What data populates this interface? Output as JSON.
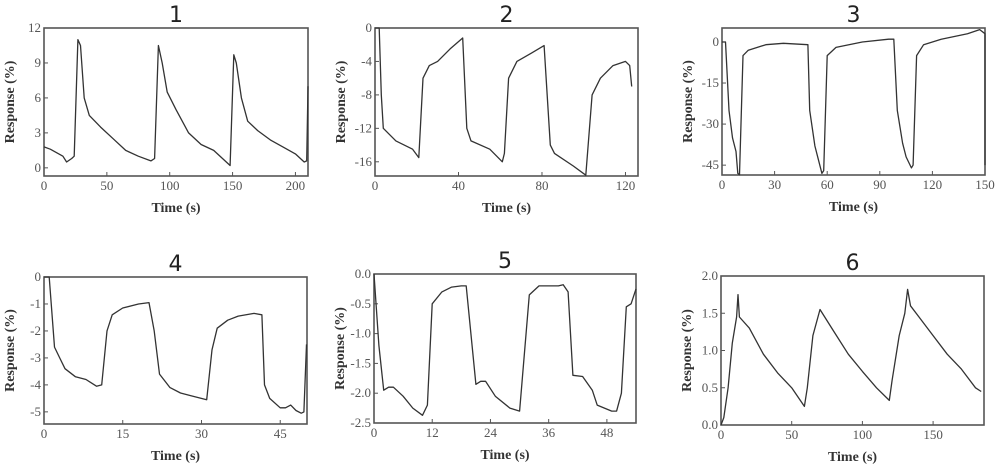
{
  "chart_data": [
    {
      "type": "line",
      "title": "1",
      "xlabel": "Time (s)",
      "ylabel": "Response (%)",
      "xlim": [
        0,
        210
      ],
      "ylim": [
        -0.7,
        12
      ],
      "xticks": [
        0,
        50,
        100,
        150,
        200
      ],
      "xtick_labels": [
        "0",
        "50",
        "100",
        "150",
        "200"
      ],
      "yticks": [
        0,
        3,
        6,
        9,
        12
      ],
      "ytick_labels": [
        "0",
        "3",
        "6",
        "9",
        "12"
      ],
      "series": [
        {
          "name": "response",
          "points": [
            [
              0,
              1.8
            ],
            [
              5,
              1.6
            ],
            [
              10,
              1.3
            ],
            [
              15,
              1
            ],
            [
              18,
              0.5
            ],
            [
              22,
              0.8
            ],
            [
              24,
              1
            ],
            [
              27,
              11
            ],
            [
              29,
              10.5
            ],
            [
              32,
              6
            ],
            [
              36,
              4.5
            ],
            [
              45,
              3.5
            ],
            [
              55,
              2.5
            ],
            [
              65,
              1.5
            ],
            [
              75,
              1
            ],
            [
              85,
              0.6
            ],
            [
              88,
              0.8
            ],
            [
              91,
              10.5
            ],
            [
              94,
              9
            ],
            [
              98,
              6.5
            ],
            [
              105,
              5
            ],
            [
              115,
              3
            ],
            [
              125,
              2
            ],
            [
              135,
              1.5
            ],
            [
              145,
              0.5
            ],
            [
              148,
              0.2
            ],
            [
              151,
              9.7
            ],
            [
              153,
              9
            ],
            [
              157,
              6
            ],
            [
              162,
              4
            ],
            [
              170,
              3.2
            ],
            [
              180,
              2.4
            ],
            [
              190,
              1.8
            ],
            [
              200,
              1.2
            ],
            [
              207,
              0.5
            ],
            [
              209,
              0.6
            ],
            [
              210,
              7
            ]
          ]
        }
      ]
    },
    {
      "type": "line",
      "title": "2",
      "xlabel": "Time (s)",
      "ylabel": "Response (%)",
      "xlim": [
        0,
        126
      ],
      "ylim": [
        -17.7,
        0
      ],
      "xticks": [
        0,
        40,
        80,
        120
      ],
      "xtick_labels": [
        "0",
        "40",
        "80",
        "120"
      ],
      "yticks": [
        0,
        -4,
        -8,
        -12,
        -16
      ],
      "ytick_labels": [
        "0",
        "-4",
        "-8",
        "-12",
        "-16"
      ],
      "series": [
        {
          "name": "response",
          "points": [
            [
              0,
              0
            ],
            [
              2,
              0
            ],
            [
              3,
              -8
            ],
            [
              4,
              -12
            ],
            [
              10,
              -13.5
            ],
            [
              18,
              -14.5
            ],
            [
              21,
              -15.5
            ],
            [
              23,
              -6
            ],
            [
              26,
              -4.5
            ],
            [
              30,
              -4
            ],
            [
              36,
              -2.5
            ],
            [
              42,
              -1.2
            ],
            [
              44,
              -12
            ],
            [
              46,
              -13.5
            ],
            [
              55,
              -14.5
            ],
            [
              61,
              -16
            ],
            [
              62,
              -15
            ],
            [
              64,
              -6
            ],
            [
              68,
              -4
            ],
            [
              75,
              -3
            ],
            [
              81,
              -2.1
            ],
            [
              84,
              -14
            ],
            [
              86,
              -15
            ],
            [
              95,
              -16.5
            ],
            [
              101,
              -17.6
            ],
            [
              104,
              -8
            ],
            [
              108,
              -6
            ],
            [
              114,
              -4.5
            ],
            [
              120,
              -4
            ],
            [
              122,
              -4.5
            ],
            [
              123,
              -7
            ]
          ]
        }
      ]
    },
    {
      "type": "line",
      "title": "3",
      "xlabel": "Time (s)",
      "ylabel": "Response (%)",
      "xlim": [
        0,
        150
      ],
      "ylim": [
        -48.6,
        5.1
      ],
      "xticks": [
        0,
        30,
        60,
        90,
        120,
        150
      ],
      "xtick_labels": [
        "0",
        "30",
        "60",
        "90",
        "120",
        "150"
      ],
      "yticks": [
        0,
        -15,
        -30,
        -45
      ],
      "ytick_labels": [
        "0",
        "-15",
        "-30",
        "-45"
      ],
      "series": [
        {
          "name": "response",
          "points": [
            [
              0,
              0
            ],
            [
              2,
              0
            ],
            [
              4,
              -25
            ],
            [
              6,
              -35
            ],
            [
              8,
              -40
            ],
            [
              9,
              -48
            ],
            [
              10,
              -48.5
            ],
            [
              12,
              -5
            ],
            [
              15,
              -3
            ],
            [
              25,
              -1
            ],
            [
              35,
              -0.5
            ],
            [
              49,
              -1
            ],
            [
              50,
              -25
            ],
            [
              53,
              -38
            ],
            [
              55,
              -43
            ],
            [
              57,
              -48
            ],
            [
              58,
              -47
            ],
            [
              60,
              -5
            ],
            [
              65,
              -2
            ],
            [
              80,
              0
            ],
            [
              95,
              1
            ],
            [
              98,
              1
            ],
            [
              100,
              -25
            ],
            [
              103,
              -37
            ],
            [
              105,
              -42
            ],
            [
              108,
              -46
            ],
            [
              109,
              -45
            ],
            [
              111,
              -5
            ],
            [
              115,
              -1
            ],
            [
              125,
              1
            ],
            [
              140,
              3
            ],
            [
              147,
              4.5
            ],
            [
              150,
              3
            ],
            [
              150,
              -45
            ]
          ]
        }
      ]
    },
    {
      "type": "line",
      "title": "4",
      "xlabel": "Time (s)",
      "ylabel": "Response (%)",
      "xlim": [
        0,
        50.1
      ],
      "ylim": [
        -5.45,
        0
      ],
      "xticks": [
        0,
        15,
        30,
        45
      ],
      "xtick_labels": [
        "0",
        "15",
        "30",
        "45"
      ],
      "yticks": [
        0,
        -1,
        -2,
        -3,
        -4,
        -5
      ],
      "ytick_labels": [
        "0",
        "-1",
        "-2",
        "-3",
        "-4",
        "-5"
      ],
      "series": [
        {
          "name": "response",
          "points": [
            [
              0,
              0
            ],
            [
              1,
              0
            ],
            [
              2,
              -2.6
            ],
            [
              3,
              -3
            ],
            [
              4,
              -3.4
            ],
            [
              6,
              -3.7
            ],
            [
              8,
              -3.8
            ],
            [
              10,
              -4.05
            ],
            [
              11,
              -4
            ],
            [
              12,
              -2
            ],
            [
              13,
              -1.4
            ],
            [
              15,
              -1.15
            ],
            [
              18,
              -1
            ],
            [
              20,
              -0.95
            ],
            [
              21,
              -2
            ],
            [
              22,
              -3.6
            ],
            [
              24,
              -4.1
            ],
            [
              26,
              -4.3
            ],
            [
              28,
              -4.4
            ],
            [
              31,
              -4.55
            ],
            [
              32,
              -2.7
            ],
            [
              33,
              -1.9
            ],
            [
              35,
              -1.6
            ],
            [
              37,
              -1.45
            ],
            [
              40,
              -1.35
            ],
            [
              41.5,
              -1.4
            ],
            [
              42,
              -4
            ],
            [
              43,
              -4.5
            ],
            [
              45,
              -4.85
            ],
            [
              46,
              -4.85
            ],
            [
              47,
              -4.75
            ],
            [
              48,
              -4.95
            ],
            [
              49,
              -5.05
            ],
            [
              49.5,
              -5
            ],
            [
              50,
              -2.5
            ]
          ]
        }
      ]
    },
    {
      "type": "line",
      "title": "5",
      "xlabel": "Time (s)",
      "ylabel": "Response (%)",
      "xlim": [
        0,
        54
      ],
      "ylim": [
        -2.5,
        0
      ],
      "xticks": [
        0,
        12,
        24,
        36,
        48
      ],
      "xtick_labels": [
        "0",
        "12",
        "24",
        "36",
        "48"
      ],
      "yticks": [
        0,
        -0.5,
        -1,
        -1.5,
        -2,
        -2.5
      ],
      "ytick_labels": [
        "0.0",
        "-0.5",
        "-1.0",
        "-1.5",
        "-2.0",
        "-2.5"
      ],
      "series": [
        {
          "name": "response",
          "points": [
            [
              0,
              0
            ],
            [
              1,
              -1.2
            ],
            [
              2,
              -1.95
            ],
            [
              3,
              -1.9
            ],
            [
              4,
              -1.9
            ],
            [
              6,
              -2.05
            ],
            [
              8,
              -2.25
            ],
            [
              10,
              -2.37
            ],
            [
              11,
              -2.2
            ],
            [
              12,
              -0.5
            ],
            [
              14,
              -0.3
            ],
            [
              16,
              -0.22
            ],
            [
              18,
              -0.2
            ],
            [
              19,
              -0.2
            ],
            [
              21,
              -1.85
            ],
            [
              22,
              -1.8
            ],
            [
              23,
              -1.8
            ],
            [
              25,
              -2.05
            ],
            [
              28,
              -2.25
            ],
            [
              30,
              -2.3
            ],
            [
              32,
              -0.35
            ],
            [
              34,
              -0.2
            ],
            [
              36,
              -0.2
            ],
            [
              38,
              -0.2
            ],
            [
              39,
              -0.18
            ],
            [
              40,
              -0.3
            ],
            [
              41,
              -1.7
            ],
            [
              43,
              -1.72
            ],
            [
              45,
              -1.95
            ],
            [
              46,
              -2.2
            ],
            [
              49,
              -2.3
            ],
            [
              50,
              -2.3
            ],
            [
              51,
              -2
            ],
            [
              52,
              -0.55
            ],
            [
              53,
              -0.5
            ],
            [
              54,
              -0.25
            ]
          ]
        }
      ]
    },
    {
      "type": "line",
      "title": "6",
      "xlabel": "Time (s)",
      "ylabel": "Response (%)",
      "xlim": [
        0,
        186
      ],
      "ylim": [
        0,
        2
      ],
      "xticks": [
        0,
        50,
        100,
        150
      ],
      "xtick_labels": [
        "0",
        "50",
        "100",
        "150"
      ],
      "yticks": [
        0,
        0.5,
        1,
        1.5,
        2
      ],
      "ytick_labels": [
        "0.0",
        "0.5",
        "1.0",
        "1.5",
        "2.0"
      ],
      "series": [
        {
          "name": "response",
          "points": [
            [
              0,
              0
            ],
            [
              2,
              0.1
            ],
            [
              5,
              0.5
            ],
            [
              8,
              1.1
            ],
            [
              11,
              1.45
            ],
            [
              12,
              1.75
            ],
            [
              13,
              1.45
            ],
            [
              20,
              1.3
            ],
            [
              30,
              0.95
            ],
            [
              40,
              0.7
            ],
            [
              50,
              0.5
            ],
            [
              59,
              0.25
            ],
            [
              61,
              0.5
            ],
            [
              65,
              1.2
            ],
            [
              70,
              1.55
            ],
            [
              80,
              1.25
            ],
            [
              90,
              0.95
            ],
            [
              100,
              0.72
            ],
            [
              110,
              0.5
            ],
            [
              119,
              0.33
            ],
            [
              121,
              0.6
            ],
            [
              126,
              1.2
            ],
            [
              130,
              1.5
            ],
            [
              132,
              1.82
            ],
            [
              134,
              1.6
            ],
            [
              140,
              1.45
            ],
            [
              150,
              1.2
            ],
            [
              160,
              0.95
            ],
            [
              170,
              0.75
            ],
            [
              180,
              0.5
            ],
            [
              184,
              0.45
            ]
          ]
        }
      ]
    }
  ]
}
